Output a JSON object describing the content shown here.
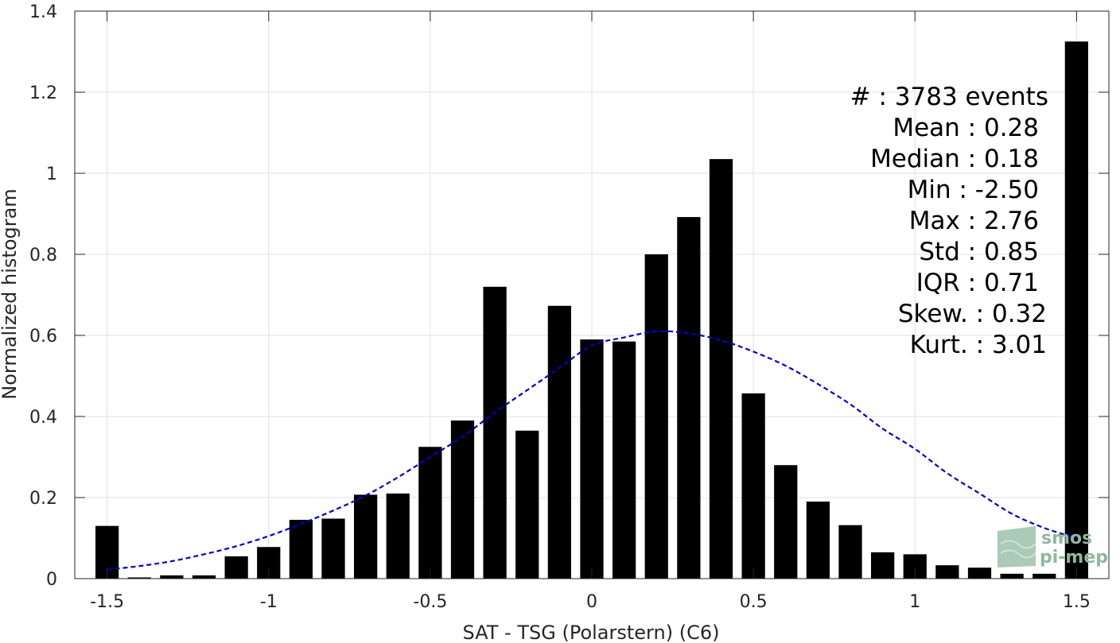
{
  "chart_data": {
    "type": "bar",
    "xlabel": "SAT - TSG (Polarstern) (C6)",
    "ylabel": "Normalized histogram",
    "xlim": [
      -1.6,
      1.6
    ],
    "ylim": [
      0,
      1.4
    ],
    "grid": true,
    "x_ticks": [
      {
        "value": -1.5,
        "label": "-1.5"
      },
      {
        "value": -1,
        "label": "-1"
      },
      {
        "value": -0.5,
        "label": "-0.5"
      },
      {
        "value": 0,
        "label": "0"
      },
      {
        "value": 0.5,
        "label": "0.5"
      },
      {
        "value": 1,
        "label": "1"
      },
      {
        "value": 1.5,
        "label": "1.5"
      }
    ],
    "y_ticks": [
      {
        "value": 0,
        "label": "0"
      },
      {
        "value": 0.2,
        "label": "0.2"
      },
      {
        "value": 0.4,
        "label": "0.4"
      },
      {
        "value": 0.6,
        "label": "0.6"
      },
      {
        "value": 0.8,
        "label": "0.8"
      },
      {
        "value": 1,
        "label": "1"
      },
      {
        "value": 1.2,
        "label": "1.2"
      },
      {
        "value": 1.4,
        "label": "1.4"
      }
    ],
    "bar_color": "#000000",
    "bars": {
      "x": [
        -1.5,
        -1.4,
        -1.3,
        -1.2,
        -1.1,
        -1.0,
        -0.9,
        -0.8,
        -0.7,
        -0.6,
        -0.5,
        -0.4,
        -0.3,
        -0.2,
        -0.1,
        0.0,
        0.1,
        0.2,
        0.3,
        0.4,
        0.5,
        0.6,
        0.7,
        0.8,
        0.9,
        1.0,
        1.1,
        1.2,
        1.3,
        1.4,
        1.5
      ],
      "values": [
        0.13,
        0.003,
        0.008,
        0.008,
        0.055,
        0.078,
        0.145,
        0.148,
        0.207,
        0.21,
        0.325,
        0.39,
        0.72,
        0.365,
        0.673,
        0.59,
        0.585,
        0.8,
        0.892,
        1.035,
        0.457,
        0.28,
        0.19,
        0.132,
        0.065,
        0.06,
        0.033,
        0.027,
        0.012,
        0.012,
        1.325
      ]
    },
    "fit_curve": {
      "style": "dashed",
      "color": "#0000cc",
      "x": [
        -1.5,
        -1.4,
        -1.3,
        -1.2,
        -1.1,
        -1.0,
        -0.9,
        -0.8,
        -0.7,
        -0.6,
        -0.5,
        -0.4,
        -0.3,
        -0.2,
        -0.1,
        0.0,
        0.1,
        0.2,
        0.3,
        0.4,
        0.5,
        0.6,
        0.7,
        0.8,
        0.9,
        1.0,
        1.1,
        1.2,
        1.3,
        1.4,
        1.5
      ],
      "y": [
        0.022,
        0.031,
        0.043,
        0.06,
        0.08,
        0.105,
        0.135,
        0.168,
        0.205,
        0.25,
        0.3,
        0.35,
        0.41,
        0.465,
        0.52,
        0.575,
        0.595,
        0.61,
        0.605,
        0.588,
        0.56,
        0.525,
        0.48,
        0.43,
        0.37,
        0.32,
        0.26,
        0.21,
        0.16,
        0.125,
        0.1
      ]
    },
    "annotations": [
      {
        "label": "#  : 3783 events",
        "anchor": "x1318"
      },
      {
        "label": "Mean : 0.28",
        "anchor": "x1306"
      },
      {
        "label": "Median : 0.18",
        "anchor": "x1306"
      },
      {
        "label": "Min : -2.50",
        "anchor": "x1306"
      },
      {
        "label": "Max : 2.76",
        "anchor": "x1306"
      },
      {
        "label": "Std : 0.85",
        "anchor": "x1306"
      },
      {
        "label": "IQR : 0.71",
        "anchor": "x1306"
      },
      {
        "label": "Skew. : 0.32",
        "anchor": "x1316"
      },
      {
        "label": "Kurt. : 3.01",
        "anchor": "x1316"
      }
    ]
  },
  "logo": {
    "line1": "smos",
    "line2": "pi-mep",
    "color": "#8fb89f"
  }
}
